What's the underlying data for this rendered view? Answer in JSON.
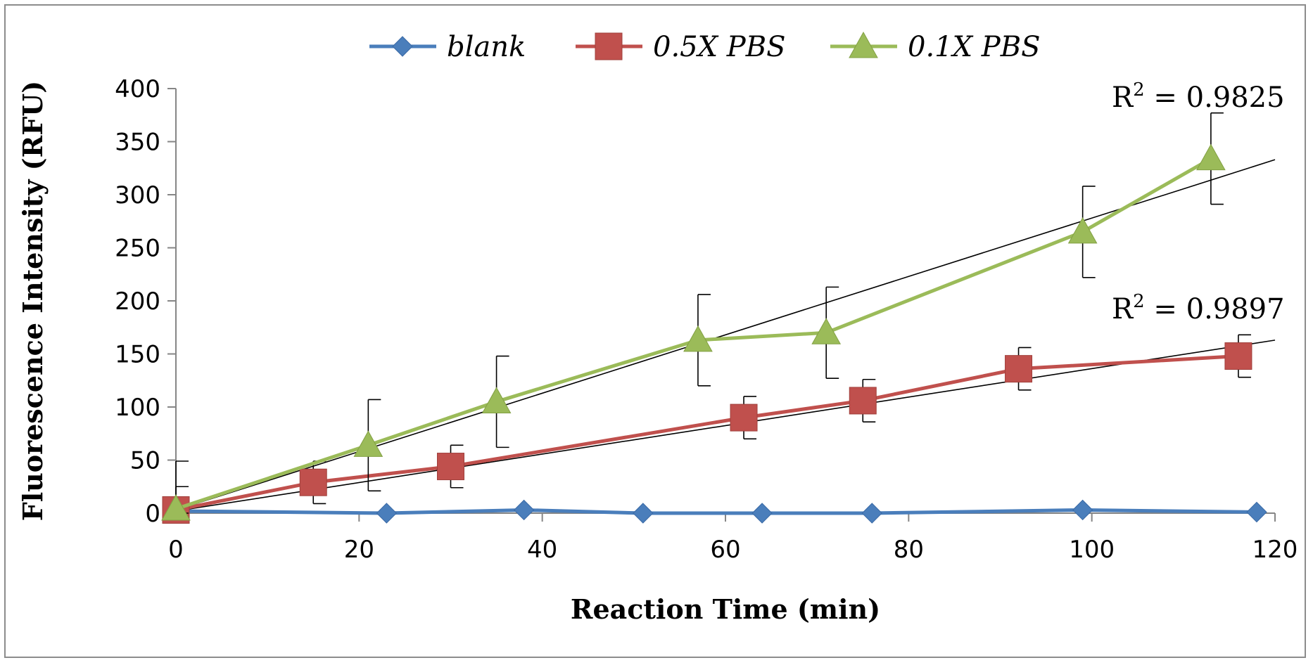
{
  "chart_data": {
    "type": "line",
    "title": "",
    "xlabel": "Reaction Time (min)",
    "ylabel": "Fluorescence Intensity (RFU)",
    "xlim": [
      0,
      120
    ],
    "ylim": [
      0,
      400
    ],
    "xticks": [
      0,
      20,
      40,
      60,
      80,
      100,
      120
    ],
    "yticks": [
      0,
      50,
      100,
      150,
      200,
      250,
      300,
      350,
      400
    ],
    "grid": false,
    "legend": "top-center",
    "series": [
      {
        "name": "blank",
        "color": "#4a7ebb",
        "marker": "diamond",
        "x": [
          0,
          23,
          38,
          51,
          64,
          76,
          99,
          118
        ],
        "y": [
          2,
          0,
          3,
          0,
          0,
          0,
          3,
          1
        ]
      },
      {
        "name": "0.5X PBS",
        "color": "#c0504d",
        "marker": "square",
        "x": [
          0,
          15,
          30,
          62,
          75,
          92,
          116
        ],
        "y": [
          3,
          29,
          44,
          90,
          106,
          136,
          148
        ],
        "err": [
          22,
          20,
          20,
          20,
          20,
          20,
          20
        ],
        "trendline": {
          "x": [
            0,
            120
          ],
          "y": [
            2,
            163
          ]
        }
      },
      {
        "name": "0.1X PBS",
        "color": "#9bbb59",
        "marker": "triangle",
        "x": [
          0,
          21,
          35,
          57,
          71,
          99,
          113
        ],
        "y": [
          4,
          64,
          105,
          163,
          170,
          265,
          334
        ],
        "err": [
          45,
          43,
          43,
          43,
          43,
          43,
          43
        ],
        "trendline": {
          "x": [
            0,
            120
          ],
          "y": [
            3,
            333
          ]
        }
      }
    ],
    "annotations": [
      {
        "base": "R",
        "sup": "2",
        "rest": " = 0.9825",
        "series": "0.1X PBS"
      },
      {
        "base": "R",
        "sup": "2",
        "rest": " = 0.9897",
        "series": "0.5X PBS"
      }
    ]
  }
}
